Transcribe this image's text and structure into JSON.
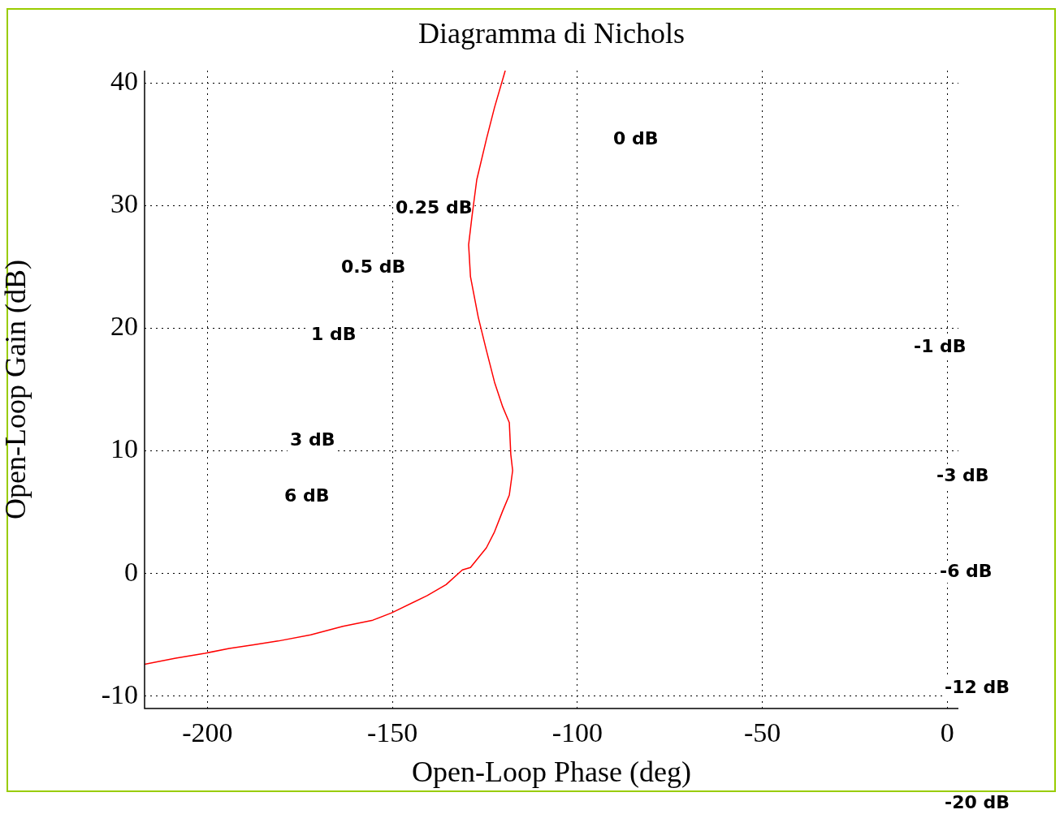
{
  "chart_data": {
    "type": "line",
    "title": "Diagramma di Nichols",
    "xlabel": "Open-Loop Phase (deg)",
    "ylabel": "Open-Loop Gain (dB)",
    "x": [
      -119.5,
      -122.4,
      -124.6,
      -127.2,
      -128.5,
      -129.4,
      -128.9,
      -126.8,
      -124.6,
      -122.4,
      -120.2,
      -118.4,
      -118.0,
      -117.5,
      -118.4,
      -120.2,
      -122.4,
      -124.6,
      -128.9,
      -131.1,
      -135.5,
      -140.6,
      -150.2,
      -155.3,
      -163.4,
      -172.1,
      -180.9,
      -187.5,
      -194.1,
      -200.7,
      -208.6,
      -217
    ],
    "series": [
      {
        "color": "#ff0000",
        "values": [
          41,
          38.0,
          35.4,
          32.1,
          29.1,
          26.8,
          24.2,
          20.9,
          18.2,
          15.6,
          13.6,
          12.3,
          9.7,
          8.4,
          6.4,
          5.1,
          3.4,
          2.1,
          0.5,
          0.3,
          -0.9,
          -1.8,
          -3.2,
          -3.8,
          -4.3,
          -5.0,
          -5.5,
          -5.8,
          -6.1,
          -6.5,
          -6.9,
          -7.4
        ]
      }
    ],
    "xlim": [
      -217,
      3
    ],
    "ylim": [
      -11,
      41
    ],
    "xticks": [
      -200,
      -150,
      -100,
      -50,
      0
    ],
    "yticks": [
      -10,
      0,
      10,
      20,
      30,
      40
    ],
    "grid": true,
    "line_style": "solid",
    "marker": "none",
    "annotations": [
      "0 dB",
      "0.25 dB",
      "0.5 dB",
      "1 dB",
      "3 dB",
      "6 dB",
      "-1 dB",
      "-3 dB",
      "-6 dB",
      "-12 dB",
      "-20 dB"
    ]
  }
}
